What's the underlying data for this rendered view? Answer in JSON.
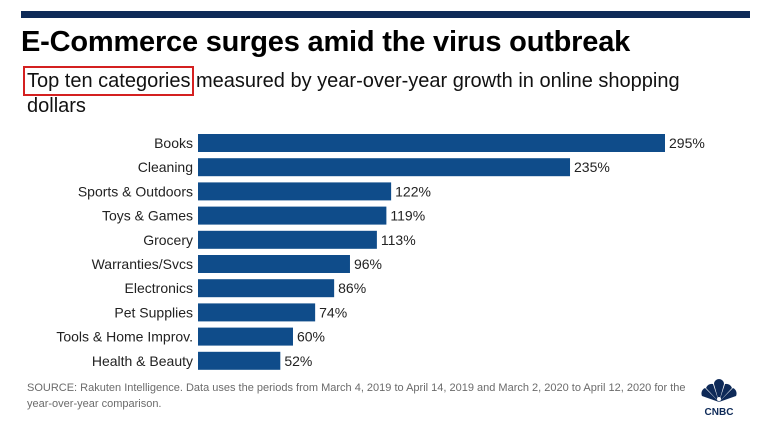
{
  "header": {
    "title": "E-Commerce surges amid the virus outbreak",
    "subtitle_highlight": "Top ten categories",
    "subtitle_rest": " measured by year-over-year growth in online shopping dollars"
  },
  "footer": {
    "source": "SOURCE: Rakuten Intelligence. Data uses the periods from March 4, 2019 to April 14, 2019 and March 2, 2020 to April 12, 2020 for the year-over-year comparison.",
    "logo_text": "CNBC"
  },
  "colors": {
    "bar": "#0f4c8a",
    "accent_rule": "#0e2a58",
    "highlight_box": "#d42020"
  },
  "chart_data": {
    "type": "bar",
    "orientation": "horizontal",
    "categories": [
      "Books",
      "Cleaning",
      "Sports & Outdoors",
      "Toys & Games",
      "Grocery",
      "Warranties/Svcs",
      "Electronics",
      "Pet Supplies",
      "Tools & Home Improv.",
      "Health & Beauty"
    ],
    "values": [
      295,
      235,
      122,
      119,
      113,
      96,
      86,
      74,
      60,
      52
    ],
    "value_labels": [
      "295%",
      "235%",
      "122%",
      "119%",
      "113%",
      "96%",
      "86%",
      "74%",
      "60%",
      "52%"
    ],
    "unit": "%",
    "xlim": [
      0,
      295
    ],
    "grid": false,
    "legend": "none"
  }
}
